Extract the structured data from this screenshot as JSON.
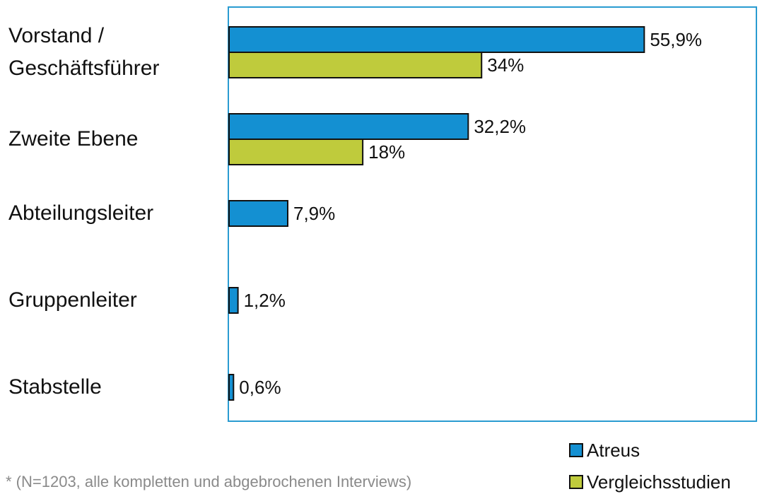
{
  "chart_data": {
    "type": "hbar",
    "categories": [
      "Vorstand /\nGeschäftsführer",
      "Zweite Ebene",
      "Abteilungsleiter",
      "Gruppenleiter",
      "Stabstelle"
    ],
    "series": [
      {
        "name": "Atreus",
        "color": "#1490d2",
        "values": [
          55.9,
          32.2,
          7.9,
          1.2,
          0.6
        ],
        "value_labels": [
          "55,9%",
          "32,2%",
          "7,9%",
          "1,2%",
          "0,6%"
        ]
      },
      {
        "name": "Vergleichsstudien",
        "color": "#bfcb3c",
        "values": [
          34,
          18,
          null,
          null,
          null
        ],
        "value_labels": [
          "34%",
          "18%",
          null,
          null,
          null
        ]
      }
    ],
    "xlim": [
      0,
      71
    ],
    "footnote": "* (N=1203, alle kompletten und abgebrochenen Interviews)"
  }
}
